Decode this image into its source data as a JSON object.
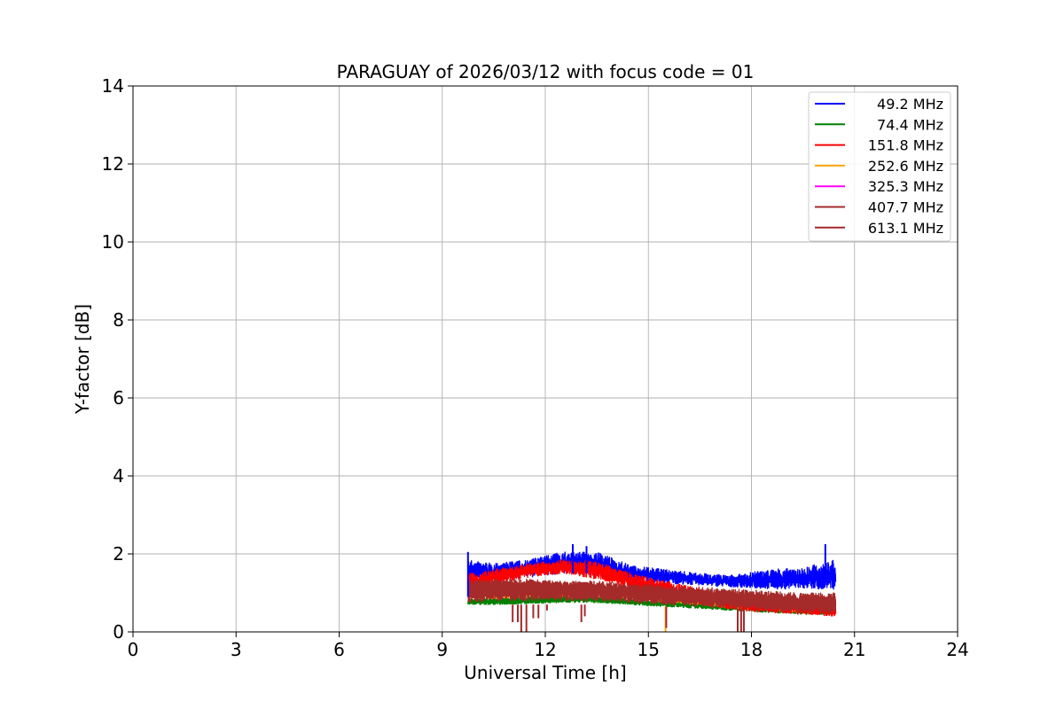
{
  "chart_data": {
    "type": "line",
    "title": "PARAGUAY of 2026/03/12 with focus code = 01",
    "xlabel": "Universal Time [h]",
    "ylabel": "Y-factor [dB]",
    "xlim": [
      0,
      24
    ],
    "ylim": [
      0,
      14
    ],
    "xticks": [
      0,
      3,
      6,
      9,
      12,
      15,
      18,
      21,
      24
    ],
    "yticks": [
      0,
      2,
      4,
      6,
      8,
      10,
      12,
      14
    ],
    "xtick_labels": [
      "0",
      "3",
      "6",
      "9",
      "12",
      "15",
      "18",
      "21",
      "24"
    ],
    "ytick_labels": [
      "0",
      "2",
      "4",
      "6",
      "8",
      "10",
      "12",
      "14"
    ],
    "grid": true,
    "legend_position": "top-right",
    "series": [
      {
        "name": " 49.2 MHz",
        "color": "#0000ff",
        "x": [
          9.75,
          10.5,
          11.5,
          12.5,
          13.5,
          14.5,
          15.5,
          16.5,
          17.5,
          18.5,
          19.5,
          20.45
        ],
        "y_low": [
          1.3,
          1.35,
          1.4,
          1.5,
          1.45,
          1.3,
          1.25,
          1.2,
          1.15,
          1.1,
          1.1,
          1.1
        ],
        "y_high": [
          1.85,
          1.75,
          1.85,
          2.05,
          2.05,
          1.7,
          1.6,
          1.5,
          1.45,
          1.6,
          1.65,
          1.85
        ]
      },
      {
        "name": " 74.4 MHz",
        "color": "#008000",
        "x": [
          9.75,
          10.5,
          11.5,
          12.5,
          13.5,
          14.5,
          15.5,
          16.5,
          17.5,
          18.5,
          19.5,
          20.45
        ],
        "y_low": [
          0.7,
          0.7,
          0.72,
          0.75,
          0.75,
          0.7,
          0.65,
          0.6,
          0.55,
          0.5,
          0.45,
          0.45
        ],
        "y_high": [
          0.85,
          0.85,
          0.9,
          0.9,
          0.9,
          0.85,
          0.8,
          0.75,
          0.7,
          0.65,
          0.6,
          0.6
        ]
      },
      {
        "name": "151.8 MHz",
        "color": "#ff0000",
        "x": [
          9.75,
          10.5,
          11.5,
          12.5,
          13.5,
          14.5,
          15.5,
          16.5,
          17.5,
          18.5,
          19.5,
          20.45
        ],
        "y_low": [
          1.0,
          1.2,
          1.4,
          1.5,
          1.35,
          1.1,
          0.9,
          0.7,
          0.55,
          0.5,
          0.45,
          0.4
        ],
        "y_high": [
          1.5,
          1.6,
          1.75,
          1.85,
          1.8,
          1.5,
          1.3,
          1.1,
          0.9,
          0.8,
          0.75,
          0.7
        ]
      },
      {
        "name": "252.6 MHz",
        "color": "#ffa500",
        "x": [
          9.75,
          10.5,
          11.5,
          12.5,
          13.5,
          14.5,
          15.5,
          16.5,
          17.5,
          18.5,
          19.5,
          20.45
        ],
        "y_low": [
          0.85,
          0.85,
          0.9,
          0.9,
          0.9,
          0.85,
          0.75,
          0.7,
          0.6,
          0.55,
          0.5,
          0.5
        ],
        "y_high": [
          1.05,
          1.05,
          1.05,
          1.05,
          1.0,
          0.95,
          0.9,
          0.85,
          0.75,
          0.7,
          0.65,
          0.65
        ]
      },
      {
        "name": "325.3 MHz",
        "color": "#ff00ff",
        "x": [
          9.75,
          10.5,
          11.5,
          12.5,
          13.5,
          14.5,
          15.5,
          16.5,
          17.5,
          18.5,
          19.5,
          20.45
        ],
        "y_low": [
          1.0,
          1.0,
          1.0,
          1.0,
          0.98,
          0.95,
          0.9,
          0.85,
          0.8,
          0.75,
          0.72,
          0.7
        ],
        "y_high": [
          1.12,
          1.1,
          1.1,
          1.08,
          1.05,
          1.02,
          0.98,
          0.93,
          0.88,
          0.82,
          0.8,
          0.78
        ]
      },
      {
        "name": "407.7 MHz",
        "color": "#a52a2a",
        "x": [
          9.75,
          10.5,
          11.5,
          12.5,
          13.5,
          14.5,
          15.5,
          16.5,
          17.5,
          18.5,
          19.5,
          20.45
        ],
        "y_low": [
          0.8,
          0.85,
          0.85,
          0.85,
          0.85,
          0.8,
          0.75,
          0.7,
          0.65,
          0.6,
          0.55,
          0.5
        ],
        "y_high": [
          1.3,
          1.3,
          1.3,
          1.3,
          1.25,
          1.2,
          1.15,
          1.1,
          1.05,
          1.0,
          0.95,
          0.95
        ]
      },
      {
        "name": "613.1 MHz",
        "color": "#a52a2a",
        "x": [
          9.75,
          10.5,
          11.5,
          12.5,
          13.5,
          14.5,
          15.5,
          16.5,
          17.5,
          18.5,
          19.5,
          20.45
        ],
        "y_low": [
          0.75,
          0.8,
          0.8,
          0.8,
          0.8,
          0.75,
          0.7,
          0.65,
          0.6,
          0.55,
          0.5,
          0.45
        ],
        "y_high": [
          1.35,
          1.35,
          1.35,
          1.3,
          1.3,
          1.25,
          1.2,
          1.15,
          1.1,
          1.05,
          1.0,
          1.0
        ]
      }
    ],
    "spikes": [
      {
        "x": 9.75,
        "y_top": 2.05,
        "y_bottom": 0.9,
        "color": "#0000ff"
      },
      {
        "x": 12.8,
        "y_top": 2.25,
        "y_bottom": 1.5,
        "color": "#0000ff"
      },
      {
        "x": 13.2,
        "y_top": 2.2,
        "y_bottom": 1.5,
        "color": "#0000ff"
      },
      {
        "x": 20.15,
        "y_top": 2.25,
        "y_bottom": 1.2,
        "color": "#0000ff"
      },
      {
        "x": 11.05,
        "y_top": 0.7,
        "y_bottom": 0.25,
        "color": "#a52a2a"
      },
      {
        "x": 11.2,
        "y_top": 0.7,
        "y_bottom": 0.25,
        "color": "#a52a2a"
      },
      {
        "x": 11.3,
        "y_top": 0.7,
        "y_bottom": 0.0,
        "color": "#a52a2a"
      },
      {
        "x": 11.45,
        "y_top": 0.7,
        "y_bottom": 0.0,
        "color": "#a52a2a"
      },
      {
        "x": 11.65,
        "y_top": 0.7,
        "y_bottom": 0.35,
        "color": "#a52a2a"
      },
      {
        "x": 11.8,
        "y_top": 0.7,
        "y_bottom": 0.35,
        "color": "#a52a2a"
      },
      {
        "x": 12.05,
        "y_top": 0.7,
        "y_bottom": 0.55,
        "color": "#a52a2a"
      },
      {
        "x": 13.05,
        "y_top": 0.7,
        "y_bottom": 0.25,
        "color": "#a52a2a"
      },
      {
        "x": 13.15,
        "y_top": 0.7,
        "y_bottom": 0.4,
        "color": "#a52a2a"
      },
      {
        "x": 15.5,
        "y_top": 0.65,
        "y_bottom": 0.0,
        "color": "#ffa500"
      },
      {
        "x": 15.52,
        "y_top": 0.65,
        "y_bottom": 0.1,
        "color": "#a52a2a"
      },
      {
        "x": 17.6,
        "y_top": 0.6,
        "y_bottom": 0.0,
        "color": "#a52a2a"
      },
      {
        "x": 17.7,
        "y_top": 0.6,
        "y_bottom": 0.0,
        "color": "#a52a2a"
      },
      {
        "x": 17.78,
        "y_top": 0.6,
        "y_bottom": 0.0,
        "color": "#a52a2a"
      }
    ]
  }
}
